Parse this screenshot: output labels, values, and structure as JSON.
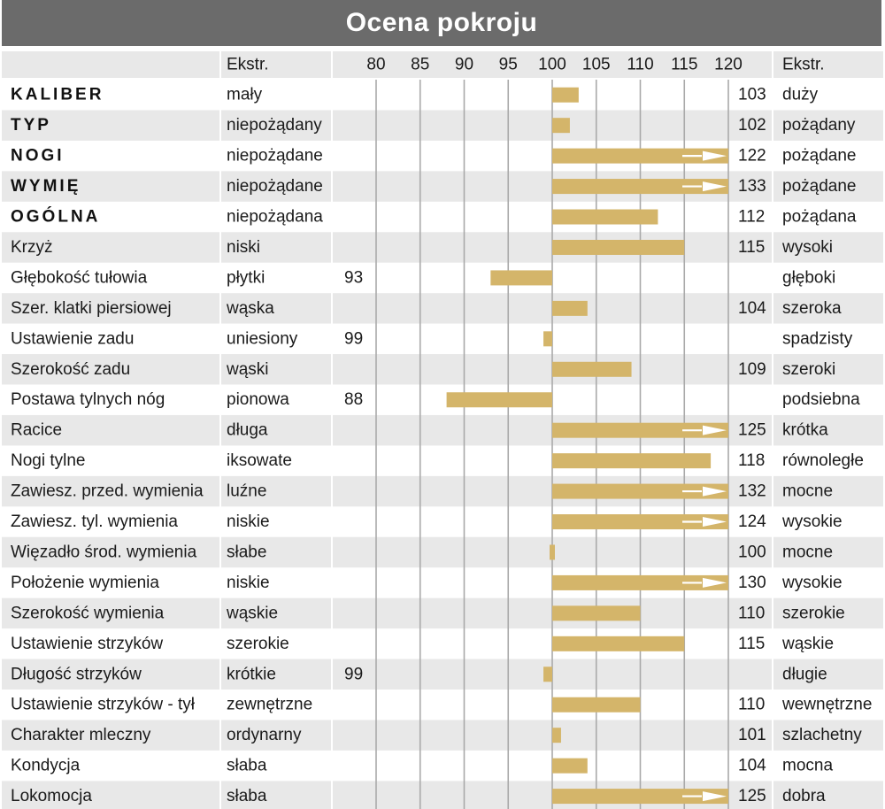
{
  "title": "Ocena pokroju",
  "colors": {
    "title_bg": "#6b6b6b",
    "bar": "#d4b56a",
    "row_alt": "#e8e8e8",
    "grid": "#a9a9a9",
    "text": "#1a1a1a"
  },
  "header": {
    "left_extreme_label": "Ekstr.",
    "right_extreme_label": "Ekstr."
  },
  "chart_data": {
    "type": "bar",
    "orientation": "horizontal",
    "baseline": 100,
    "xlim": [
      75,
      120
    ],
    "ticks": [
      80,
      85,
      90,
      95,
      100,
      105,
      110,
      115,
      120
    ],
    "tick_labels": [
      "80",
      "85",
      "90",
      "95",
      "100",
      "105",
      "110",
      "115",
      "120"
    ],
    "grid": true,
    "overflow_marker": "arrow at 120 for values > 120",
    "rows": [
      {
        "trait": "KALIBER",
        "bold": true,
        "low": "mały",
        "high": "duży",
        "value": 103
      },
      {
        "trait": "TYP",
        "bold": true,
        "low": "niepożądany",
        "high": "pożądany",
        "value": 102
      },
      {
        "trait": "NOGI",
        "bold": true,
        "low": "niepożądane",
        "high": "pożądane",
        "value": 122
      },
      {
        "trait": "WYMIĘ",
        "bold": true,
        "low": "niepożądane",
        "high": "pożądane",
        "value": 133
      },
      {
        "trait": "OGÓLNA",
        "bold": true,
        "low": "niepożądana",
        "high": "pożądana",
        "value": 112
      },
      {
        "trait": "Krzyż",
        "bold": false,
        "low": "niski",
        "high": "wysoki",
        "value": 115
      },
      {
        "trait": "Głębokość tułowia",
        "bold": false,
        "low": "płytki",
        "high": "głęboki",
        "value": 93
      },
      {
        "trait": "Szer. klatki piersiowej",
        "bold": false,
        "low": "wąska",
        "high": "szeroka",
        "value": 104
      },
      {
        "trait": "Ustawienie zadu",
        "bold": false,
        "low": "uniesiony",
        "high": "spadzisty",
        "value": 99
      },
      {
        "trait": "Szerokość zadu",
        "bold": false,
        "low": "wąski",
        "high": "szeroki",
        "value": 109
      },
      {
        "trait": "Postawa tylnych nóg",
        "bold": false,
        "low": "pionowa",
        "high": "podsiebna",
        "value": 88
      },
      {
        "trait": "Racice",
        "bold": false,
        "low": "długa",
        "high": "krótka",
        "value": 125
      },
      {
        "trait": "Nogi tylne",
        "bold": false,
        "low": "iksowate",
        "high": "równoległe",
        "value": 118
      },
      {
        "trait": "Zawiesz. przed. wymienia",
        "bold": false,
        "low": "luźne",
        "high": "mocne",
        "value": 132
      },
      {
        "trait": "Zawiesz. tyl. wymienia",
        "bold": false,
        "low": "niskie",
        "high": "wysokie",
        "value": 124
      },
      {
        "trait": "Więzadło środ. wymienia",
        "bold": false,
        "low": "słabe",
        "high": "mocne",
        "value": 100
      },
      {
        "trait": "Położenie wymienia",
        "bold": false,
        "low": "niskie",
        "high": "wysokie",
        "value": 130
      },
      {
        "trait": "Szerokość wymienia",
        "bold": false,
        "low": "wąskie",
        "high": "szerokie",
        "value": 110
      },
      {
        "trait": "Ustawienie strzyków",
        "bold": false,
        "low": "szerokie",
        "high": "wąskie",
        "value": 115
      },
      {
        "trait": "Długość strzyków",
        "bold": false,
        "low": "krótkie",
        "high": "długie",
        "value": 99
      },
      {
        "trait": "Ustawienie strzyków - tył",
        "bold": false,
        "low": "zewnętrzne",
        "high": "wewnętrzne",
        "value": 110
      },
      {
        "trait": "Charakter mleczny",
        "bold": false,
        "low": "ordynarny",
        "high": "szlachetny",
        "value": 101
      },
      {
        "trait": "Kondycja",
        "bold": false,
        "low": "słaba",
        "high": "mocna",
        "value": 104
      },
      {
        "trait": "Lokomocja",
        "bold": false,
        "low": "słaba",
        "high": "dobra",
        "value": 125
      }
    ]
  }
}
